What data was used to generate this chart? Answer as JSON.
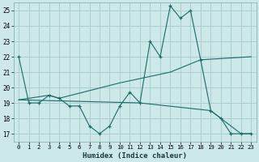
{
  "xlabel": "Humidex (Indice chaleur)",
  "background_color": "#cce8e8",
  "grid_color": "#aacece",
  "line_color": "#1a6b6b",
  "xlim": [
    -0.5,
    23.5
  ],
  "ylim": [
    16.5,
    25.5
  ],
  "yticks": [
    17,
    18,
    19,
    20,
    21,
    22,
    23,
    24,
    25
  ],
  "xticks": [
    0,
    1,
    2,
    3,
    4,
    5,
    6,
    7,
    8,
    9,
    10,
    11,
    12,
    13,
    14,
    15,
    16,
    17,
    18,
    19,
    20,
    21,
    22,
    23
  ],
  "series": [
    [
      0,
      22
    ],
    [
      1,
      19
    ],
    [
      2,
      19
    ],
    [
      3,
      19.5
    ],
    [
      4,
      19.3
    ],
    [
      5,
      18.8
    ],
    [
      6,
      18.8
    ],
    [
      7,
      17.5
    ],
    [
      8,
      17
    ],
    [
      9,
      17.5
    ],
    [
      10,
      18.8
    ],
    [
      11,
      19.7
    ],
    [
      12,
      19
    ],
    [
      13,
      23
    ],
    [
      14,
      22
    ],
    [
      15,
      25.3
    ],
    [
      16,
      24.5
    ],
    [
      17,
      25
    ],
    [
      18,
      21.8
    ],
    [
      19,
      18.5
    ],
    [
      20,
      18
    ],
    [
      21,
      17
    ],
    [
      22,
      17
    ],
    [
      23,
      17
    ]
  ],
  "trend_series": [
    [
      0,
      19.2
    ],
    [
      3,
      19.5
    ],
    [
      4,
      19.3
    ],
    [
      10,
      20.3
    ],
    [
      15,
      21.0
    ],
    [
      18,
      21.8
    ],
    [
      23,
      22
    ]
  ],
  "descend_series": [
    [
      0,
      19.2
    ],
    [
      12,
      19.0
    ],
    [
      19,
      18.5
    ],
    [
      22,
      17.0
    ],
    [
      23,
      17.0
    ]
  ]
}
